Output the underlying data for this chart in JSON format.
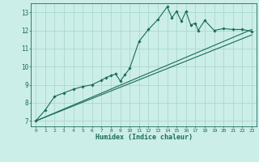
{
  "xlabel": "Humidex (Indice chaleur)",
  "ylabel": "",
  "bg_color": "#cceee8",
  "grid_color": "#aad8d0",
  "line_color": "#1a6b5a",
  "curve_x": [
    0,
    1,
    2,
    3,
    4,
    5,
    6,
    7,
    7.5,
    8,
    8.5,
    9,
    9.5,
    10,
    11,
    12,
    13,
    14,
    14.5,
    15,
    15.5,
    16,
    16.5,
    17,
    17.3,
    18,
    19,
    20,
    21,
    22,
    23
  ],
  "curve_y": [
    7.0,
    7.6,
    8.35,
    8.55,
    8.75,
    8.9,
    9.0,
    9.25,
    9.4,
    9.5,
    9.6,
    9.2,
    9.55,
    9.9,
    11.4,
    12.05,
    12.6,
    13.3,
    12.7,
    13.05,
    12.5,
    13.05,
    12.3,
    12.4,
    12.0,
    12.55,
    12.0,
    12.1,
    12.05,
    12.05,
    11.95
  ],
  "line1_x": [
    0,
    23
  ],
  "line1_y": [
    7.0,
    12.05
  ],
  "line2_x": [
    0,
    23
  ],
  "line2_y": [
    7.0,
    11.75
  ],
  "xlim": [
    -0.5,
    23.5
  ],
  "ylim": [
    6.7,
    13.5
  ],
  "yticks": [
    7,
    8,
    9,
    10,
    11,
    12,
    13
  ],
  "xticks": [
    0,
    1,
    2,
    3,
    4,
    5,
    6,
    7,
    8,
    9,
    10,
    11,
    12,
    13,
    14,
    15,
    16,
    17,
    18,
    19,
    20,
    21,
    22,
    23
  ]
}
